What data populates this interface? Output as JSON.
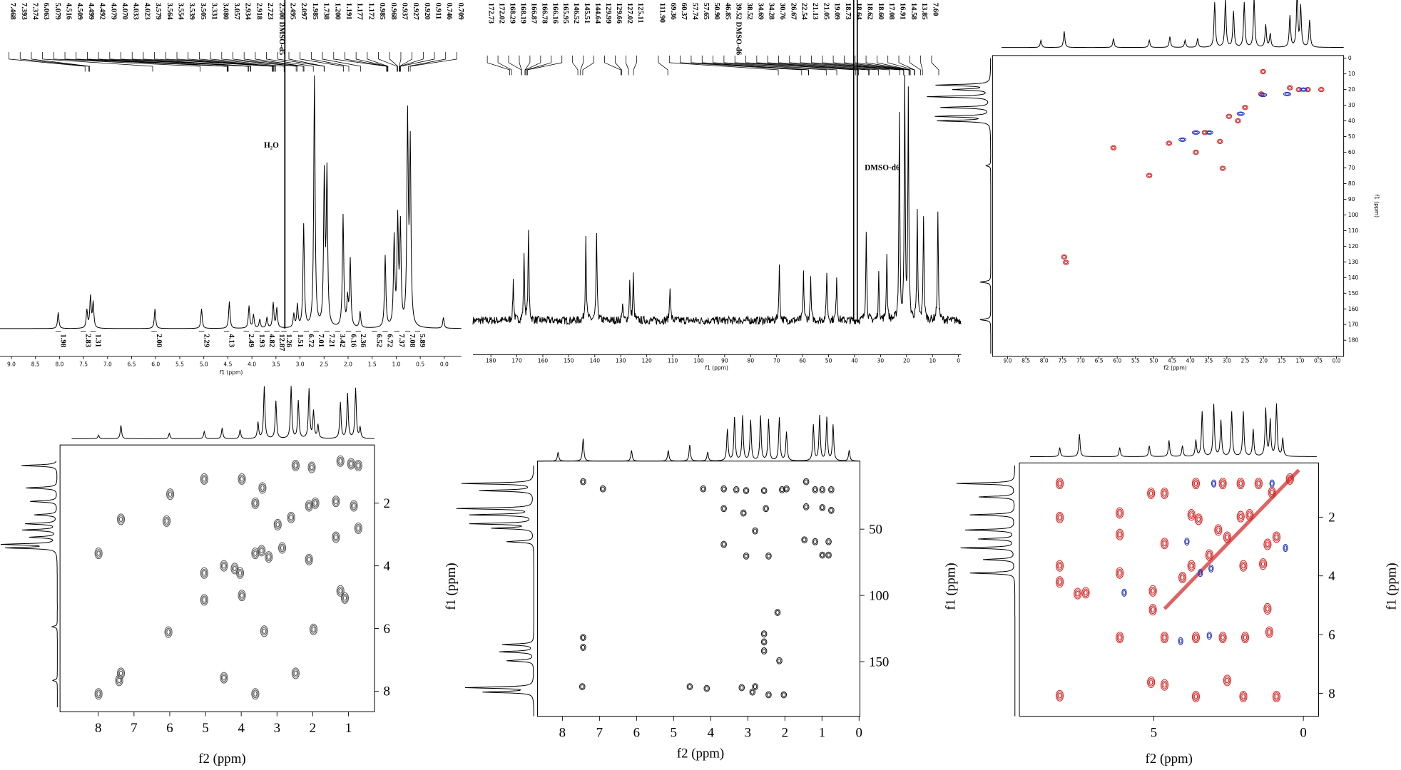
{
  "spectra": [
    {
      "peak_labels": [
        "7.468",
        "7.393",
        "7.374",
        "6.063",
        "5.079",
        "4.516",
        "4.509",
        "4.499",
        "4.492",
        "4.079",
        "4.070",
        "4.033",
        "4.023",
        "3.579",
        "3.564",
        "3.554",
        "3.539",
        "3.505",
        "3.331",
        "3.080",
        "3.057",
        "2.934",
        "2.918",
        "2.723",
        "2.500 DMSO-d5",
        "2.495",
        "2.097",
        "1.985",
        "1.738",
        "1.200",
        "1.191",
        "1.177",
        "1.172",
        "0.985",
        "0.968",
        "0.937",
        "0.927",
        "0.920",
        "0.911",
        "0.746",
        "0.709"
      ],
      "integrals": [
        "1.98",
        "2.83",
        "1.31",
        "2.00",
        "2.29",
        "4.13",
        "2.49",
        "1.93",
        "4.82",
        "12.87",
        "1.26",
        "1.51",
        "6.72",
        "7.01",
        "7.21",
        "3.42",
        "6.16",
        "2.36",
        "6.52",
        "6.72",
        "7.37",
        "7.08",
        "5.89"
      ],
      "annotation": "H₂O",
      "x_ticks": [
        "9.0",
        "8.5",
        "8.0",
        "7.5",
        "7.0",
        "6.5",
        "6.0",
        "5.5",
        "5.0",
        "4.5",
        "4.0",
        "3.5",
        "3.0",
        "2.5",
        "2.0",
        "1.5",
        "1.0",
        "0.5",
        "0.0"
      ],
      "x_label": "f1 (ppm)"
    },
    {
      "peak_labels": [
        "172.73",
        "172.02",
        "168.29",
        "168.19",
        "166.87",
        "166.78",
        "166.16",
        "165.95",
        "146.52",
        "145.51",
        "144.64",
        "129.99",
        "129.66",
        "127.02",
        "125.11",
        "111.90",
        "69.36",
        "60.37",
        "57.74",
        "57.65",
        "50.90",
        "46.85",
        "39.52 DMSO-d6",
        "38.52",
        "34.69",
        "34.28",
        "30.76",
        "26.67",
        "22.54",
        "21.13",
        "21.05",
        "19.09",
        "18.73",
        "18.64",
        "18.62",
        "18.60",
        "17.08",
        "16.91",
        "14.58",
        "13.85",
        "7.60"
      ],
      "annotation": "DMSO-d6",
      "x_ticks": [
        "180",
        "170",
        "160",
        "150",
        "140",
        "130",
        "120",
        "110",
        "100",
        "90",
        "80",
        "70",
        "60",
        "50",
        "40",
        "30",
        "20",
        "10",
        "0"
      ],
      "x_label": "f1 (ppm)"
    },
    {
      "x_ticks": [
        "9.0",
        "8.5",
        "8.0",
        "7.5",
        "7.0",
        "6.5",
        "6.0",
        "5.5",
        "5.0",
        "4.5",
        "4.0",
        "3.5",
        "3.0",
        "2.5",
        "2.0",
        "1.5",
        "1.0",
        "0.5",
        "0.0"
      ],
      "x_label": "f2 (ppm)",
      "y_ticks": [
        "0",
        "10",
        "20",
        "30",
        "40",
        "50",
        "60",
        "70",
        "80",
        "90",
        "100",
        "110",
        "120",
        "130",
        "140",
        "150",
        "160",
        "170",
        "180"
      ],
      "y_labels": [
        "f1 (ppm)"
      ]
    },
    {
      "x_ticks": [
        "8",
        "7",
        "6",
        "5",
        "4",
        "3",
        "2",
        "1"
      ],
      "x_label": "f2 (ppm)",
      "y_ticks": [
        "2",
        "4",
        "6",
        "8"
      ]
    },
    {
      "x_ticks": [
        "8",
        "7",
        "6",
        "5",
        "4",
        "3",
        "2",
        "1",
        "0"
      ],
      "x_label": "f2 (ppm)",
      "y_ticks": [
        "50",
        "100",
        "150"
      ],
      "y_labels": [
        "f1 (ppm)",
        "f1 (ppm)"
      ]
    },
    {
      "x_ticks": [
        "5",
        "0"
      ],
      "x_label": "f2 (ppm)",
      "y_ticks": [
        "2",
        "4",
        "6",
        "8"
      ],
      "y_labels": [
        "f1 (ppm)"
      ]
    }
  ]
}
